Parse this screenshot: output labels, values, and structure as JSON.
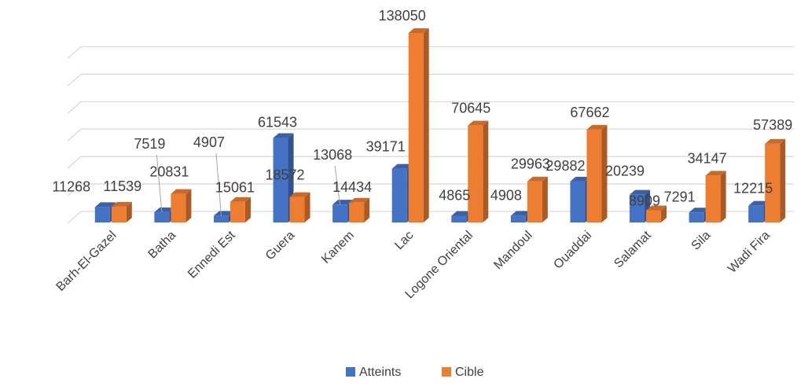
{
  "chart_data": {
    "type": "bar",
    "categories": [
      "Barh-El-Gazel",
      "Batha",
      "Ennedi Est",
      "Guera",
      "Kanem",
      "Lac",
      "Logone Oriental",
      "Mandoul",
      "Ouaddai",
      "Salamat",
      "Sila",
      "Wadi Fira"
    ],
    "series": [
      {
        "name": "Atteints",
        "values": [
          11268,
          7519,
          4907,
          61543,
          13068,
          39171,
          4865,
          4908,
          29882,
          20239,
          7291,
          12215
        ]
      },
      {
        "name": "Cible",
        "values": [
          11539,
          20831,
          15061,
          18572,
          14434,
          138050,
          70645,
          29963,
          67662,
          8909,
          34147,
          57389
        ]
      }
    ],
    "ylim": [
      0,
      140000
    ],
    "grid": true,
    "legend_position": "bottom",
    "three_d": true,
    "data_labels": true
  },
  "colors": {
    "Atteints": "#4472c4",
    "Cible": "#ed7d31",
    "grid": "#d9d9d9",
    "text": "#404040"
  }
}
